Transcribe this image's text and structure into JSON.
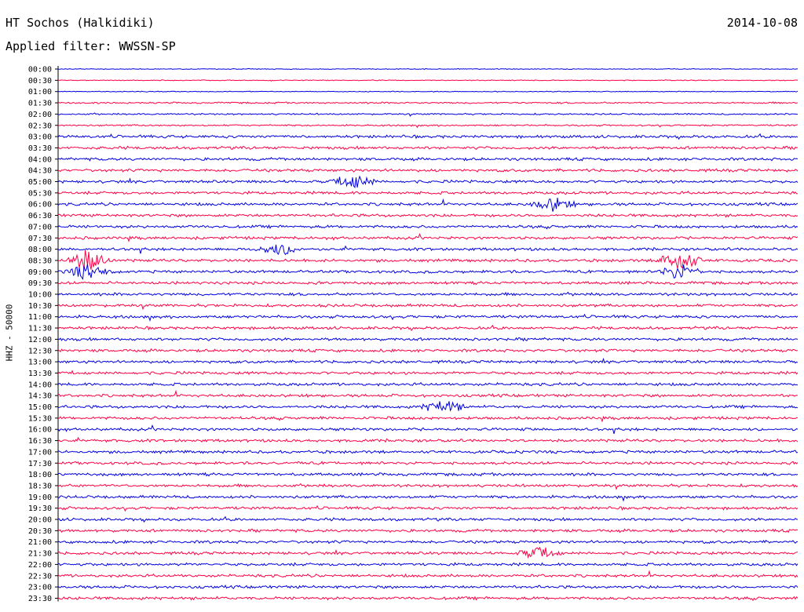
{
  "header": {
    "station": "HT Sochos (Halkidiki)",
    "date": "2014-10-08",
    "filter": "Applied filter: WWSSN-SP"
  },
  "chart_data": {
    "type": "line",
    "title": "HT Sochos (Halkidiki)",
    "ylabel": "HHZ - 50000",
    "xlabel": "",
    "row_labels": [
      "00:00",
      "00:30",
      "01:00",
      "01:30",
      "02:00",
      "02:30",
      "03:00",
      "03:30",
      "04:00",
      "04:30",
      "05:00",
      "05:30",
      "06:00",
      "06:30",
      "07:00",
      "07:30",
      "08:00",
      "08:30",
      "09:00",
      "09:30",
      "10:00",
      "10:30",
      "11:00",
      "11:30",
      "12:00",
      "12:30",
      "13:00",
      "13:30",
      "14:00",
      "14:30",
      "15:00",
      "15:30",
      "16:00",
      "16:30",
      "17:00",
      "17:30",
      "18:00",
      "18:30",
      "19:00",
      "19:30",
      "20:00",
      "20:30",
      "21:00",
      "21:30",
      "22:00",
      "22:30",
      "23:00",
      "23:30"
    ],
    "row_colors": [
      "#0000e0",
      "#ff0044"
    ],
    "trace_description": "48 half-hour seismogram traces alternating blue/red; amplitude bursts mark seismic events",
    "events": [
      {
        "row": "05:00",
        "pos": 0.4,
        "amp": 1.6
      },
      {
        "row": "06:00",
        "pos": 0.67,
        "amp": 1.6
      },
      {
        "row": "08:00",
        "pos": 0.3,
        "amp": 1.4
      },
      {
        "row": "08:30",
        "pos": 0.04,
        "amp": 2.6
      },
      {
        "row": "08:30",
        "pos": 0.84,
        "amp": 2.6
      },
      {
        "row": "09:00",
        "pos": 0.04,
        "amp": 1.8
      },
      {
        "row": "09:00",
        "pos": 0.84,
        "amp": 1.8
      },
      {
        "row": "15:00",
        "pos": 0.52,
        "amp": 1.6
      },
      {
        "row": "21:30",
        "pos": 0.65,
        "amp": 1.3
      }
    ]
  }
}
